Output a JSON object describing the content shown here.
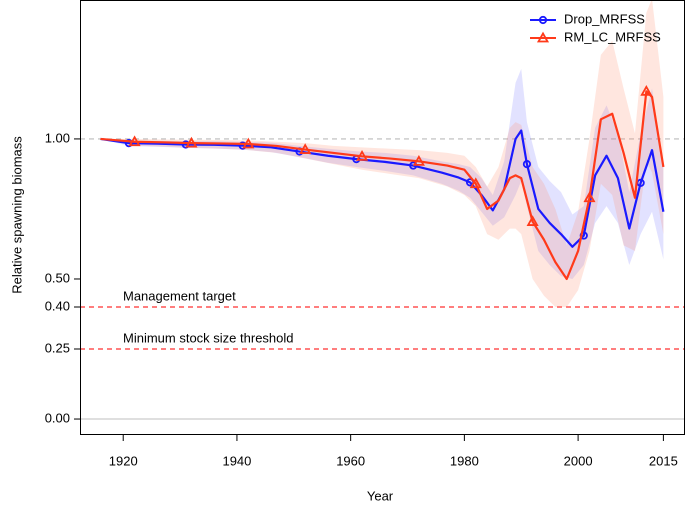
{
  "chart_data": {
    "type": "line",
    "xlabel": "Year",
    "ylabel": "Relative spawning biomass",
    "xlim": [
      1912.4,
      2018.8
    ],
    "ylim": [
      -0.057,
      1.496
    ],
    "xticks": [
      1920,
      1940,
      1960,
      1980,
      2000,
      2015
    ],
    "yticks": [
      {
        "value": 0,
        "label": "0.00"
      },
      {
        "value": 0.25,
        "label": "0.25"
      },
      {
        "value": 0.4,
        "label": "0.40"
      },
      {
        "value": 0.5,
        "label": "0.50"
      },
      {
        "value": 1,
        "label": "1.00"
      }
    ],
    "marker_every": 10,
    "legend": "top-right",
    "hlines": [
      {
        "value": 1,
        "color": "#bbbbbb",
        "dash": true
      },
      {
        "value": 0,
        "color": "#cccccc",
        "dash": false
      },
      {
        "value": 0.4,
        "color": "#ff3030",
        "dash": true,
        "label": "Management target"
      },
      {
        "value": 0.25,
        "color": "#ff3030",
        "dash": true,
        "label": "Minimum stock size threshold"
      }
    ],
    "series": [
      {
        "name": "Drop_MRFSS",
        "color": "#1a1aff",
        "band_color": "rgba(110,110,255,0.2)",
        "marker": "circle",
        "marker_phase": 1,
        "x": [
          1916,
          1921,
          1926,
          1931,
          1936,
          1941,
          1946,
          1951,
          1956,
          1961,
          1966,
          1971,
          1976,
          1979,
          1981,
          1983,
          1985,
          1987,
          1989,
          1990,
          1991,
          1993,
          1995,
          1997,
          1999,
          2001,
          2003,
          2005,
          2007,
          2009,
          2011,
          2013,
          2015
        ],
        "values": [
          1.0,
          0.985,
          0.983,
          0.98,
          0.979,
          0.976,
          0.97,
          0.955,
          0.94,
          0.928,
          0.918,
          0.905,
          0.88,
          0.862,
          0.845,
          0.8,
          0.745,
          0.82,
          1.0,
          1.03,
          0.91,
          0.75,
          0.7,
          0.66,
          0.615,
          0.655,
          0.87,
          0.94,
          0.86,
          0.68,
          0.843,
          0.96,
          0.74
        ],
        "lower": [
          1.0,
          0.975,
          0.972,
          0.968,
          0.966,
          0.962,
          0.953,
          0.935,
          0.915,
          0.9,
          0.886,
          0.87,
          0.84,
          0.815,
          0.79,
          0.74,
          0.69,
          0.72,
          0.8,
          0.85,
          0.76,
          0.6,
          0.55,
          0.51,
          0.5,
          0.55,
          0.7,
          0.76,
          0.7,
          0.55,
          0.66,
          0.74,
          0.57
        ],
        "upper": [
          1.0,
          0.995,
          0.994,
          0.992,
          0.992,
          0.99,
          0.987,
          0.975,
          0.965,
          0.956,
          0.95,
          0.94,
          0.92,
          0.91,
          0.9,
          0.86,
          0.8,
          0.92,
          1.2,
          1.25,
          1.06,
          0.9,
          0.85,
          0.81,
          0.73,
          0.76,
          1.04,
          1.12,
          1.02,
          0.81,
          1.02,
          1.18,
          0.91
        ]
      },
      {
        "name": "RM_LC_MRFSS",
        "color": "#ff3a1a",
        "band_color": "rgba(255,140,110,0.22)",
        "marker": "triangle",
        "marker_phase": 2,
        "x": [
          1916,
          1922,
          1927,
          1932,
          1937,
          1942,
          1947,
          1952,
          1957,
          1962,
          1967,
          1972,
          1977,
          1980,
          1982,
          1984,
          1986,
          1988,
          1989,
          1990,
          1992,
          1994,
          1996,
          1998,
          2000,
          2002,
          2004,
          2006,
          2008,
          2010,
          2012,
          2013,
          2015
        ],
        "values": [
          1.0,
          0.99,
          0.988,
          0.985,
          0.984,
          0.982,
          0.975,
          0.962,
          0.95,
          0.938,
          0.93,
          0.92,
          0.905,
          0.89,
          0.84,
          0.75,
          0.78,
          0.86,
          0.87,
          0.86,
          0.705,
          0.64,
          0.56,
          0.5,
          0.6,
          0.79,
          1.07,
          1.09,
          0.95,
          0.79,
          1.17,
          1.15,
          0.9
        ],
        "lower": [
          1.0,
          0.975,
          0.972,
          0.968,
          0.965,
          0.96,
          0.95,
          0.93,
          0.91,
          0.89,
          0.875,
          0.86,
          0.83,
          0.8,
          0.76,
          0.66,
          0.64,
          0.68,
          0.68,
          0.66,
          0.5,
          0.44,
          0.4,
          0.4,
          0.46,
          0.6,
          0.84,
          0.8,
          0.62,
          0.6,
          0.92,
          0.88,
          0.66
        ],
        "upper": [
          1.0,
          1.0,
          0.998,
          0.997,
          0.996,
          0.995,
          0.99,
          0.985,
          0.975,
          0.97,
          0.965,
          0.96,
          0.95,
          0.94,
          0.9,
          0.83,
          0.9,
          1.04,
          1.06,
          1.05,
          0.9,
          0.84,
          0.75,
          0.62,
          0.74,
          1.0,
          1.3,
          1.35,
          1.18,
          1.02,
          1.45,
          1.5,
          1.15
        ]
      }
    ]
  }
}
